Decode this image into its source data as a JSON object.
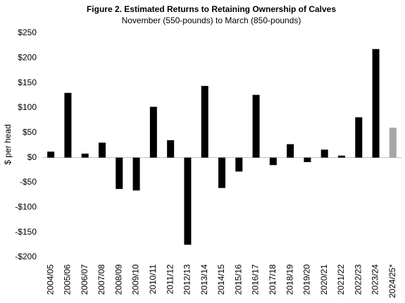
{
  "chart_data": {
    "type": "bar",
    "title": "Figure 2. Estimated Returns to Retaining Ownership of Calves",
    "subtitle": "November (550-pounds) to March (850-pounds)",
    "y_label": "$ per head",
    "categories": [
      "2004/05",
      "2005/06",
      "2006/07",
      "2007/08",
      "2008/09",
      "2009/10",
      "2010/11",
      "2011/12",
      "2012/13",
      "2013/14",
      "2014/15",
      "2015/16",
      "2016/17",
      "2017/18",
      "2018/19",
      "2019/20",
      "2020/21",
      "2021/22",
      "2022/23",
      "2023/24",
      "2024/25*"
    ],
    "values": [
      12,
      130,
      8,
      30,
      -63,
      -66,
      102,
      35,
      -175,
      144,
      -61,
      -28,
      126,
      -15,
      27,
      -9,
      16,
      4,
      81,
      218,
      60
    ],
    "colors": [
      "#000000",
      "#000000",
      "#000000",
      "#000000",
      "#000000",
      "#000000",
      "#000000",
      "#000000",
      "#000000",
      "#000000",
      "#000000",
      "#000000",
      "#000000",
      "#000000",
      "#000000",
      "#000000",
      "#000000",
      "#000000",
      "#000000",
      "#000000",
      "#a6a6a6"
    ],
    "ylim": [
      -200,
      250
    ],
    "yticks": [
      {
        "value": -200,
        "label": "-$200"
      },
      {
        "value": -150,
        "label": "-$150"
      },
      {
        "value": -100,
        "label": "-$100"
      },
      {
        "value": -50,
        "label": "-$50"
      },
      {
        "value": 0,
        "label": "$0"
      },
      {
        "value": 50,
        "label": "$50"
      },
      {
        "value": 100,
        "label": "$100"
      },
      {
        "value": 150,
        "label": "$150"
      },
      {
        "value": 200,
        "label": "$200"
      },
      {
        "value": 250,
        "label": "$250"
      }
    ],
    "grid": false
  }
}
